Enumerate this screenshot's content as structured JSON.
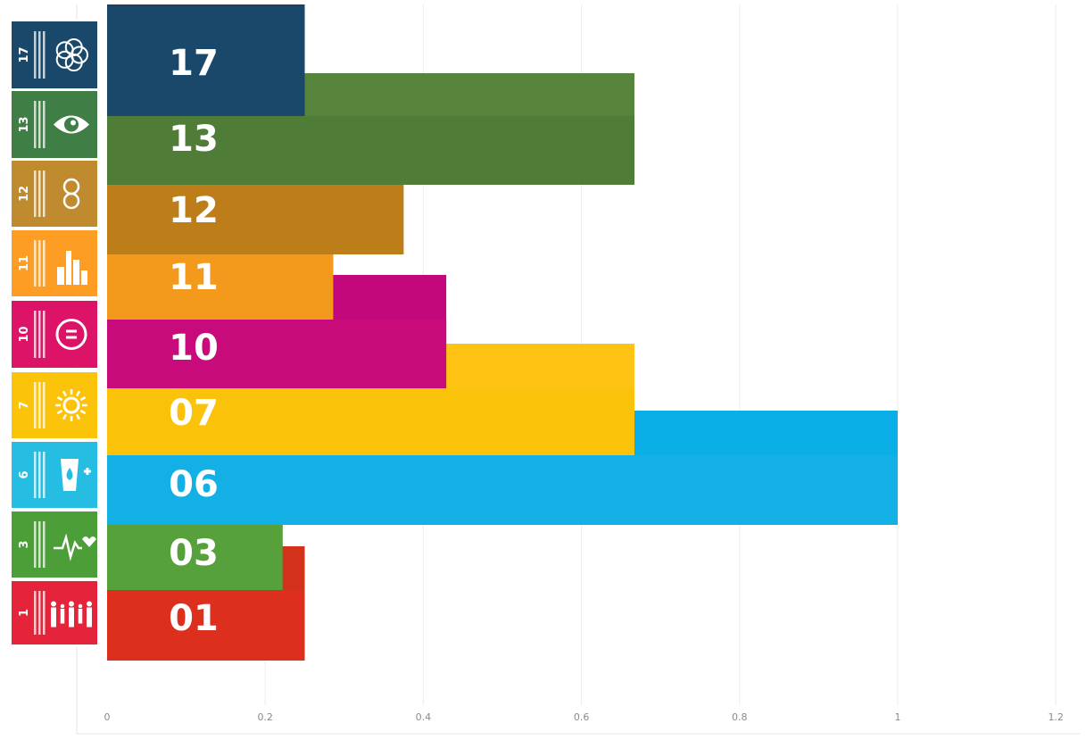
{
  "chart_data": {
    "type": "bar",
    "orientation": "horizontal",
    "title": "",
    "xlabel": "",
    "ylabel": "",
    "xlim": [
      0,
      1.2
    ],
    "x_ticks": [
      "0",
      "0.2",
      "0.4",
      "0.6",
      "0.8",
      "1",
      "1.2"
    ],
    "x_tick_values": [
      0,
      0.2,
      0.4,
      0.6,
      0.8,
      1,
      1.2
    ],
    "grid": "vertical gridlines",
    "legend": "none",
    "series": [
      {
        "label": "17",
        "color": "#19486a",
        "back": {
          "value": 0.25,
          "color": "#1d3e66"
        }
      },
      {
        "label": "13",
        "color": "#4f7d38",
        "back": {
          "value": 0.667,
          "color": "#55843a"
        }
      },
      {
        "label": "12",
        "color": "#bd7d18",
        "back": {
          "value": 0.375,
          "color": "#b87a14"
        }
      },
      {
        "label": "11",
        "color": "#f39a1c",
        "back": {
          "value": 0.286,
          "color": "#f29d1b"
        }
      },
      {
        "label": "10",
        "color": "#c80a7a",
        "back": {
          "value": 0.429,
          "color": "#c2087a"
        }
      },
      {
        "label": "07",
        "color": "#fbc20a",
        "back": {
          "value": 0.667,
          "color": "#ffc413"
        }
      },
      {
        "label": "06",
        "color": "#13b0e6",
        "back": {
          "value": 1.0,
          "color": "#0aafe8"
        }
      },
      {
        "label": "03",
        "color": "#56a13c",
        "back": {
          "value": 0.222,
          "color": "#4d9f36"
        }
      },
      {
        "label": "01",
        "color": "#dc2f1e",
        "back": {
          "value": 0.25,
          "color": "#d4311b"
        }
      }
    ],
    "categories": [
      "17",
      "13",
      "12",
      "11",
      "10",
      "07",
      "06",
      "03",
      "01"
    ],
    "values": [
      0.25,
      0.667,
      0.375,
      0.286,
      0.429,
      0.667,
      1.0,
      0.222,
      0.25
    ]
  },
  "icons": [
    {
      "number": "17",
      "glyph": "partnership-flower-icon",
      "color": "#19486a"
    },
    {
      "number": "13",
      "glyph": "eye-globe-icon",
      "color": "#3f7e44"
    },
    {
      "number": "12",
      "glyph": "infinity-loop-icon",
      "color": "#bf8b2e"
    },
    {
      "number": "11",
      "glyph": "city-buildings-icon",
      "color": "#fd9d24"
    },
    {
      "number": "10",
      "glyph": "equality-circle-icon",
      "color": "#dd1367"
    },
    {
      "number": "7",
      "glyph": "sun-energy-icon",
      "color": "#fcc30b"
    },
    {
      "number": "6",
      "glyph": "water-drop-glass-icon",
      "color": "#26bde2"
    },
    {
      "number": "3",
      "glyph": "heartbeat-icon",
      "color": "#4c9f38"
    },
    {
      "number": "1",
      "glyph": "family-people-icon",
      "color": "#e5243b"
    }
  ]
}
